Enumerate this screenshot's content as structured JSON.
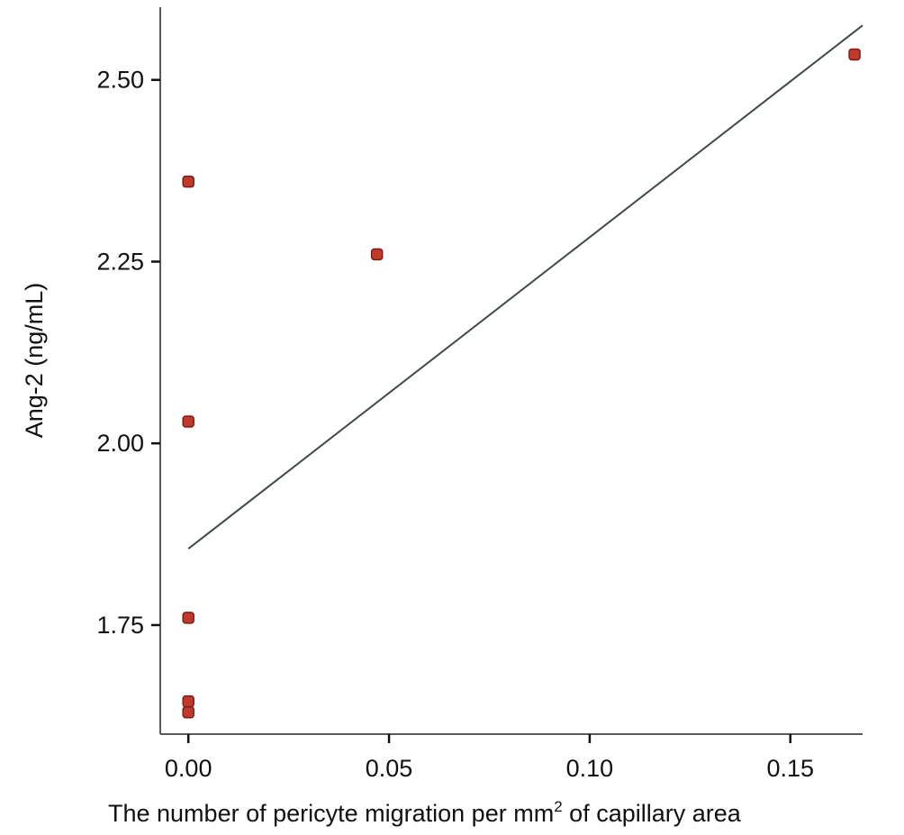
{
  "chart_data": {
    "type": "scatter",
    "xlabel_prefix": "The number of pericyte migration per mm",
    "xlabel_sup": "2",
    "xlabel_suffix": " of capillary area",
    "ylabel": "Ang-2 (ng/mL)",
    "x_ticks": [
      0.0,
      0.05,
      0.1,
      0.15
    ],
    "x_tick_labels": [
      "0.00",
      "0.05",
      "0.10",
      "0.15"
    ],
    "y_ticks": [
      1.75,
      2.0,
      2.25,
      2.5
    ],
    "y_tick_labels": [
      "1.75",
      "2.00",
      "2.25",
      "2.50"
    ],
    "xlim": [
      -0.007,
      0.168
    ],
    "ylim": [
      1.6,
      2.6
    ],
    "grid": false,
    "points": [
      {
        "x": 0.0,
        "y": 2.36
      },
      {
        "x": 0.0,
        "y": 2.03
      },
      {
        "x": 0.0,
        "y": 1.76
      },
      {
        "x": 0.0,
        "y": 1.645
      },
      {
        "x": 0.0,
        "y": 1.63
      },
      {
        "x": 0.047,
        "y": 2.26
      },
      {
        "x": 0.166,
        "y": 2.535
      }
    ],
    "fit_line": {
      "x": [
        0.0,
        0.168
      ],
      "y": [
        1.855,
        2.575
      ]
    },
    "point_color": "#c0392b",
    "line_color": "#3f4a48"
  }
}
